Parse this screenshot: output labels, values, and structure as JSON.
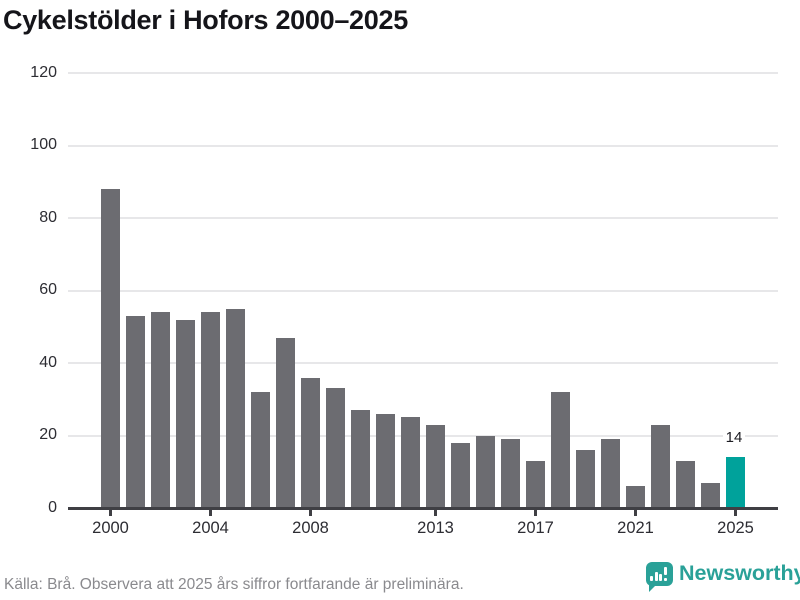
{
  "title": "Cykelstölder i Hofors 2000–2025",
  "footer": {
    "source_note": "Källa: Brå. Observera att 2025 års siffror fortfarande är preliminära."
  },
  "branding": {
    "name": "Newsworthy",
    "logo_icon": "speech-bubble-bar-chart-icon",
    "logo_color": "#2aa198"
  },
  "colors": {
    "bar": "#6c6c71",
    "highlight": "#00a29b",
    "axis": "#3f3f44",
    "gridline": "#e7e7e9",
    "tick_label": "#2d2d33",
    "title_text": "#15151a",
    "source_text": "#8a8a8e"
  },
  "chart_data": {
    "type": "bar",
    "title": "Cykelstölder i Hofors 2000–2025",
    "xlabel": "",
    "ylabel": "",
    "x": [
      2000,
      2001,
      2002,
      2003,
      2004,
      2005,
      2006,
      2007,
      2008,
      2009,
      2010,
      2011,
      2012,
      2013,
      2014,
      2015,
      2016,
      2017,
      2018,
      2019,
      2020,
      2021,
      2022,
      2023,
      2024,
      2025
    ],
    "values": [
      88,
      53,
      54,
      52,
      54,
      55,
      32,
      47,
      36,
      33,
      27,
      26,
      25,
      23,
      18,
      20,
      19,
      13,
      32,
      16,
      19,
      6,
      23,
      13,
      7,
      14
    ],
    "highlight_index": 25,
    "data_label": {
      "index": 25,
      "text": "14"
    },
    "yticks": [
      0,
      20,
      40,
      60,
      80,
      100,
      120
    ],
    "xticks": [
      2000,
      2004,
      2008,
      2013,
      2017,
      2021,
      2025
    ],
    "ylim": [
      0,
      120
    ],
    "grid": "horizontal",
    "legend": "none"
  }
}
